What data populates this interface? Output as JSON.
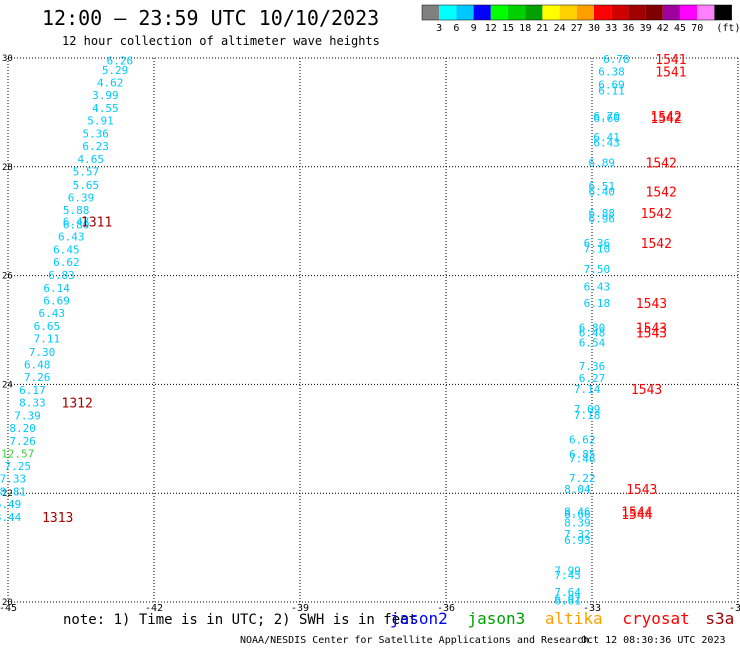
{
  "title": "12:00 – 23:59 UTC 10/10/2023",
  "subtitle": "12 hour collection of altimeter wave heights",
  "colorbar": {
    "colors": [
      "#808080",
      "#00ffff",
      "#00c8ff",
      "#0000ff",
      "#00ff00",
      "#00d000",
      "#00a000",
      "#ffff00",
      "#ffd000",
      "#ffa000",
      "#ff0000",
      "#d00000",
      "#a00000",
      "#800000",
      "#a000a0",
      "#ff00ff",
      "#ff80ff",
      "#000000"
    ],
    "labels": [
      "3",
      "6",
      "9",
      "12",
      "15",
      "18",
      "21",
      "24",
      "27",
      "30",
      "33",
      "36",
      "39",
      "42",
      "45",
      "70",
      "(ft)"
    ]
  },
  "chart_data": {
    "type": "scatter",
    "xlim": [
      -45,
      -30
    ],
    "ylim": [
      20,
      30
    ],
    "xticks": [
      "-45",
      "-42",
      "-39",
      "-36",
      "-33",
      "-30"
    ],
    "yticks": [
      "30",
      "28",
      "26",
      "24",
      "22",
      "20"
    ],
    "grid": true,
    "satellite_colors": {
      "cyan": "#00c8ff",
      "green": "#40d040",
      "red": "#ff0000",
      "dark": "#a00000"
    },
    "points": [
      {
        "x": -42.7,
        "y": 29.95,
        "v": "6.26",
        "c": "cyan"
      },
      {
        "x": -42.8,
        "y": 29.78,
        "v": "5.29",
        "c": "cyan"
      },
      {
        "x": -42.9,
        "y": 29.55,
        "v": "4.62",
        "c": "cyan"
      },
      {
        "x": -43.0,
        "y": 29.32,
        "v": "3.99",
        "c": "cyan"
      },
      {
        "x": -43.0,
        "y": 29.08,
        "v": "4.55",
        "c": "cyan"
      },
      {
        "x": -43.1,
        "y": 28.85,
        "v": "5.91",
        "c": "cyan"
      },
      {
        "x": -43.2,
        "y": 28.61,
        "v": "5.36",
        "c": "cyan"
      },
      {
        "x": -43.2,
        "y": 28.38,
        "v": "6.23",
        "c": "cyan"
      },
      {
        "x": -43.3,
        "y": 28.14,
        "v": "4.65",
        "c": "cyan"
      },
      {
        "x": -43.4,
        "y": 27.91,
        "v": "5.57",
        "c": "cyan"
      },
      {
        "x": -43.4,
        "y": 27.67,
        "v": "5.65",
        "c": "cyan"
      },
      {
        "x": -43.5,
        "y": 27.44,
        "v": "6.39",
        "c": "cyan"
      },
      {
        "x": -43.6,
        "y": 27.21,
        "v": "5.88",
        "c": "cyan"
      },
      {
        "x": -43.6,
        "y": 26.99,
        "v": "6.47",
        "c": "cyan"
      },
      {
        "x": -43.6,
        "y": 26.94,
        "v": "6.80",
        "c": "cyan"
      },
      {
        "x": -43.7,
        "y": 26.72,
        "v": "6.43",
        "c": "cyan"
      },
      {
        "x": -43.8,
        "y": 26.48,
        "v": "6.45",
        "c": "cyan"
      },
      {
        "x": -43.8,
        "y": 26.25,
        "v": "6.62",
        "c": "cyan"
      },
      {
        "x": -43.9,
        "y": 26.01,
        "v": "6.83",
        "c": "cyan"
      },
      {
        "x": -44.0,
        "y": 25.77,
        "v": "6.14",
        "c": "cyan"
      },
      {
        "x": -44.0,
        "y": 25.54,
        "v": "6.69",
        "c": "cyan"
      },
      {
        "x": -44.1,
        "y": 25.31,
        "v": "6.43",
        "c": "cyan"
      },
      {
        "x": -44.2,
        "y": 25.07,
        "v": "6.65",
        "c": "cyan"
      },
      {
        "x": -44.2,
        "y": 24.84,
        "v": "7.11",
        "c": "cyan"
      },
      {
        "x": -44.3,
        "y": 24.6,
        "v": "7.30",
        "c": "cyan"
      },
      {
        "x": -44.4,
        "y": 24.37,
        "v": "6.48",
        "c": "cyan"
      },
      {
        "x": -44.4,
        "y": 24.14,
        "v": "7.26",
        "c": "cyan"
      },
      {
        "x": -44.5,
        "y": 23.9,
        "v": "6.17",
        "c": "cyan"
      },
      {
        "x": -44.5,
        "y": 23.67,
        "v": "8.33",
        "c": "cyan"
      },
      {
        "x": -44.6,
        "y": 23.43,
        "v": "7.39",
        "c": "cyan"
      },
      {
        "x": -44.7,
        "y": 23.2,
        "v": "8.20",
        "c": "cyan"
      },
      {
        "x": -44.7,
        "y": 22.96,
        "v": "7.26",
        "c": "cyan"
      },
      {
        "x": -44.8,
        "y": 22.73,
        "v": "12.57",
        "c": "green"
      },
      {
        "x": -44.8,
        "y": 22.5,
        "v": "7.25",
        "c": "cyan"
      },
      {
        "x": -44.9,
        "y": 22.27,
        "v": "7.33",
        "c": "cyan"
      },
      {
        "x": -44.9,
        "y": 22.03,
        "v": "8.81",
        "c": "cyan"
      },
      {
        "x": -45.0,
        "y": 21.8,
        "v": "6.49",
        "c": "cyan"
      },
      {
        "x": -45.0,
        "y": 21.56,
        "v": "8.44",
        "c": "cyan"
      },
      {
        "x": -32.5,
        "y": 29.98,
        "v": "6.78",
        "c": "cyan"
      },
      {
        "x": -32.6,
        "y": 29.75,
        "v": "6.38",
        "c": "cyan"
      },
      {
        "x": -32.6,
        "y": 29.51,
        "v": "6.69",
        "c": "cyan"
      },
      {
        "x": -32.6,
        "y": 29.4,
        "v": "6.11",
        "c": "cyan"
      },
      {
        "x": -32.7,
        "y": 28.93,
        "v": "6.70",
        "c": "cyan"
      },
      {
        "x": -32.7,
        "y": 28.9,
        "v": "6.60",
        "c": "cyan"
      },
      {
        "x": -32.7,
        "y": 28.55,
        "v": "6.41",
        "c": "cyan"
      },
      {
        "x": -32.7,
        "y": 28.45,
        "v": "6.43",
        "c": "cyan"
      },
      {
        "x": -32.8,
        "y": 28.08,
        "v": "6.89",
        "c": "cyan"
      },
      {
        "x": -32.8,
        "y": 27.65,
        "v": "6.51",
        "c": "cyan"
      },
      {
        "x": -32.8,
        "y": 27.55,
        "v": "6.40",
        "c": "cyan"
      },
      {
        "x": -32.8,
        "y": 27.15,
        "v": "6.88",
        "c": "cyan"
      },
      {
        "x": -32.8,
        "y": 27.05,
        "v": "6.96",
        "c": "cyan"
      },
      {
        "x": -32.9,
        "y": 26.6,
        "v": "6.36",
        "c": "cyan"
      },
      {
        "x": -32.9,
        "y": 26.5,
        "v": "7.10",
        "c": "cyan"
      },
      {
        "x": -32.9,
        "y": 26.12,
        "v": "7.50",
        "c": "cyan"
      },
      {
        "x": -32.9,
        "y": 25.8,
        "v": "6.43",
        "c": "cyan"
      },
      {
        "x": -32.9,
        "y": 25.5,
        "v": "6.18",
        "c": "cyan"
      },
      {
        "x": -33.0,
        "y": 25.05,
        "v": "6.80",
        "c": "cyan"
      },
      {
        "x": -33.0,
        "y": 24.95,
        "v": "6.48",
        "c": "cyan"
      },
      {
        "x": -33.0,
        "y": 24.77,
        "v": "6.54",
        "c": "cyan"
      },
      {
        "x": -33.0,
        "y": 24.34,
        "v": "7.36",
        "c": "cyan"
      },
      {
        "x": -33.0,
        "y": 24.12,
        "v": "6.27",
        "c": "cyan"
      },
      {
        "x": -33.1,
        "y": 23.92,
        "v": "7.14",
        "c": "cyan"
      },
      {
        "x": -33.1,
        "y": 23.55,
        "v": "7.09",
        "c": "cyan"
      },
      {
        "x": -33.1,
        "y": 23.44,
        "v": "7.18",
        "c": "cyan"
      },
      {
        "x": -33.2,
        "y": 22.99,
        "v": "6.62",
        "c": "cyan"
      },
      {
        "x": -33.2,
        "y": 22.72,
        "v": "6.85",
        "c": "cyan"
      },
      {
        "x": -33.2,
        "y": 22.64,
        "v": "7.46",
        "c": "cyan"
      },
      {
        "x": -33.2,
        "y": 22.28,
        "v": "7.22",
        "c": "cyan"
      },
      {
        "x": -33.3,
        "y": 22.08,
        "v": "8.04",
        "c": "cyan"
      },
      {
        "x": -33.3,
        "y": 21.66,
        "v": "8.46",
        "c": "cyan"
      },
      {
        "x": -33.3,
        "y": 21.62,
        "v": "8.66",
        "c": "cyan"
      },
      {
        "x": -33.3,
        "y": 21.46,
        "v": "8.39",
        "c": "cyan"
      },
      {
        "x": -33.3,
        "y": 21.25,
        "v": "7.32",
        "c": "cyan"
      },
      {
        "x": -33.3,
        "y": 21.14,
        "v": "6.93",
        "c": "cyan"
      },
      {
        "x": -33.5,
        "y": 20.58,
        "v": "7.99",
        "c": "cyan"
      },
      {
        "x": -33.5,
        "y": 20.5,
        "v": "7.45",
        "c": "cyan"
      },
      {
        "x": -33.5,
        "y": 20.18,
        "v": "7.64",
        "c": "cyan"
      },
      {
        "x": -33.5,
        "y": 20.06,
        "v": "6.92",
        "c": "cyan"
      },
      {
        "x": -33.5,
        "y": 20.03,
        "v": "6.61",
        "c": "cyan"
      }
    ],
    "passes": [
      {
        "x": -43.5,
        "y": 26.99,
        "label": "1311",
        "c": "dark"
      },
      {
        "x": -43.9,
        "y": 23.67,
        "label": "1312",
        "c": "dark"
      },
      {
        "x": -44.3,
        "y": 21.56,
        "label": "1313",
        "c": "dark"
      },
      {
        "x": -31.7,
        "y": 29.98,
        "label": "1541",
        "c": "red"
      },
      {
        "x": -31.7,
        "y": 29.75,
        "label": "1541",
        "c": "red"
      },
      {
        "x": -31.8,
        "y": 28.93,
        "label": "1542",
        "c": "red"
      },
      {
        "x": -31.8,
        "y": 28.9,
        "label": "1542",
        "c": "red"
      },
      {
        "x": -31.9,
        "y": 28.08,
        "label": "1542",
        "c": "red"
      },
      {
        "x": -31.9,
        "y": 27.55,
        "label": "1542",
        "c": "red"
      },
      {
        "x": -32.0,
        "y": 27.15,
        "label": "1542",
        "c": "red"
      },
      {
        "x": -32.0,
        "y": 26.6,
        "label": "1542",
        "c": "red"
      },
      {
        "x": -32.1,
        "y": 25.5,
        "label": "1543",
        "c": "red"
      },
      {
        "x": -32.1,
        "y": 25.05,
        "label": "1543",
        "c": "red"
      },
      {
        "x": -32.1,
        "y": 24.95,
        "label": "1543",
        "c": "red"
      },
      {
        "x": -32.2,
        "y": 23.92,
        "label": "1543",
        "c": "red"
      },
      {
        "x": -32.3,
        "y": 22.08,
        "label": "1543",
        "c": "red"
      },
      {
        "x": -32.4,
        "y": 21.66,
        "label": "1544",
        "c": "red"
      },
      {
        "x": -32.4,
        "y": 21.62,
        "label": "1544",
        "c": "red"
      }
    ]
  },
  "footer": {
    "note": "note: 1) Time is in UTC; 2) SWH is in feet",
    "legend": [
      {
        "name": "jason2",
        "color": "#0000ff"
      },
      {
        "name": "jason3",
        "color": "#00a000"
      },
      {
        "name": "altika",
        "color": "#ffa000"
      },
      {
        "name": "cryosat",
        "color": "#ff0000"
      },
      {
        "name": "s3a",
        "color": "#a00000"
      }
    ],
    "credit": "NOAA/NESDIS Center for Satellite Applications and Research",
    "timestamp": "Oct 12 08:30:36 UTC 2023"
  }
}
